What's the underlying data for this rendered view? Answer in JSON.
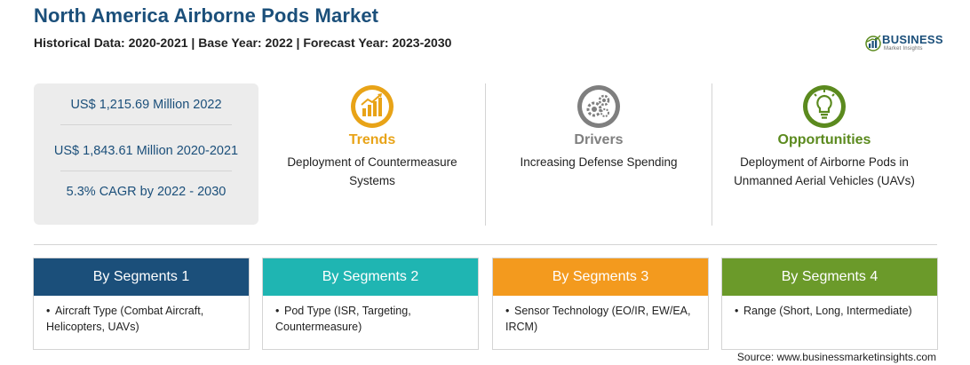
{
  "title": "North America Airborne Pods Market",
  "subtitle": "Historical Data: 2020-2021 | Base Year: 2022 | Forecast Year: 2023-2030",
  "logo": {
    "word": "BUSINESS",
    "sub": "Market Insights"
  },
  "stats": [
    "US$ 1,215.69 Million 2022",
    "US$ 1,843.61 Million 2020-2021",
    "5.3% CAGR by 2022 - 2030"
  ],
  "columns": [
    {
      "heading": "Trends",
      "text": "Deployment of Countermeasure Systems",
      "color": "#e8a317",
      "icon": "chart-icon"
    },
    {
      "heading": "Drivers",
      "text": "Increasing Defense Spending",
      "color": "#7f7f7f",
      "icon": "gears-icon"
    },
    {
      "heading": "Opportunities",
      "text": "Deployment of Airborne Pods in Unmanned Aerial Vehicles (UAVs)",
      "color": "#5b8a1e",
      "icon": "bulb-icon"
    }
  ],
  "segments": [
    {
      "heading": "By Segments 1",
      "bullet": "•",
      "text": "Aircraft Type (Combat Aircraft, Helicopters, UAVs)",
      "color": "#1b4f7a"
    },
    {
      "heading": "By Segments 2",
      "bullet": "•",
      "text": "Pod Type (ISR, Targeting, Countermeasure)",
      "color": "#1fb5b2"
    },
    {
      "heading": "By Segments 3",
      "bullet": "•",
      "text": "Sensor Technology (EO/IR, EW/EA, IRCM)",
      "color": "#f39a1e"
    },
    {
      "heading": "By Segments 4",
      "bullet": "•",
      "text": "Range (Short, Long, Intermediate)",
      "color": "#6b9a2a"
    }
  ],
  "source": "Source: www.businessmarketinsights.com"
}
